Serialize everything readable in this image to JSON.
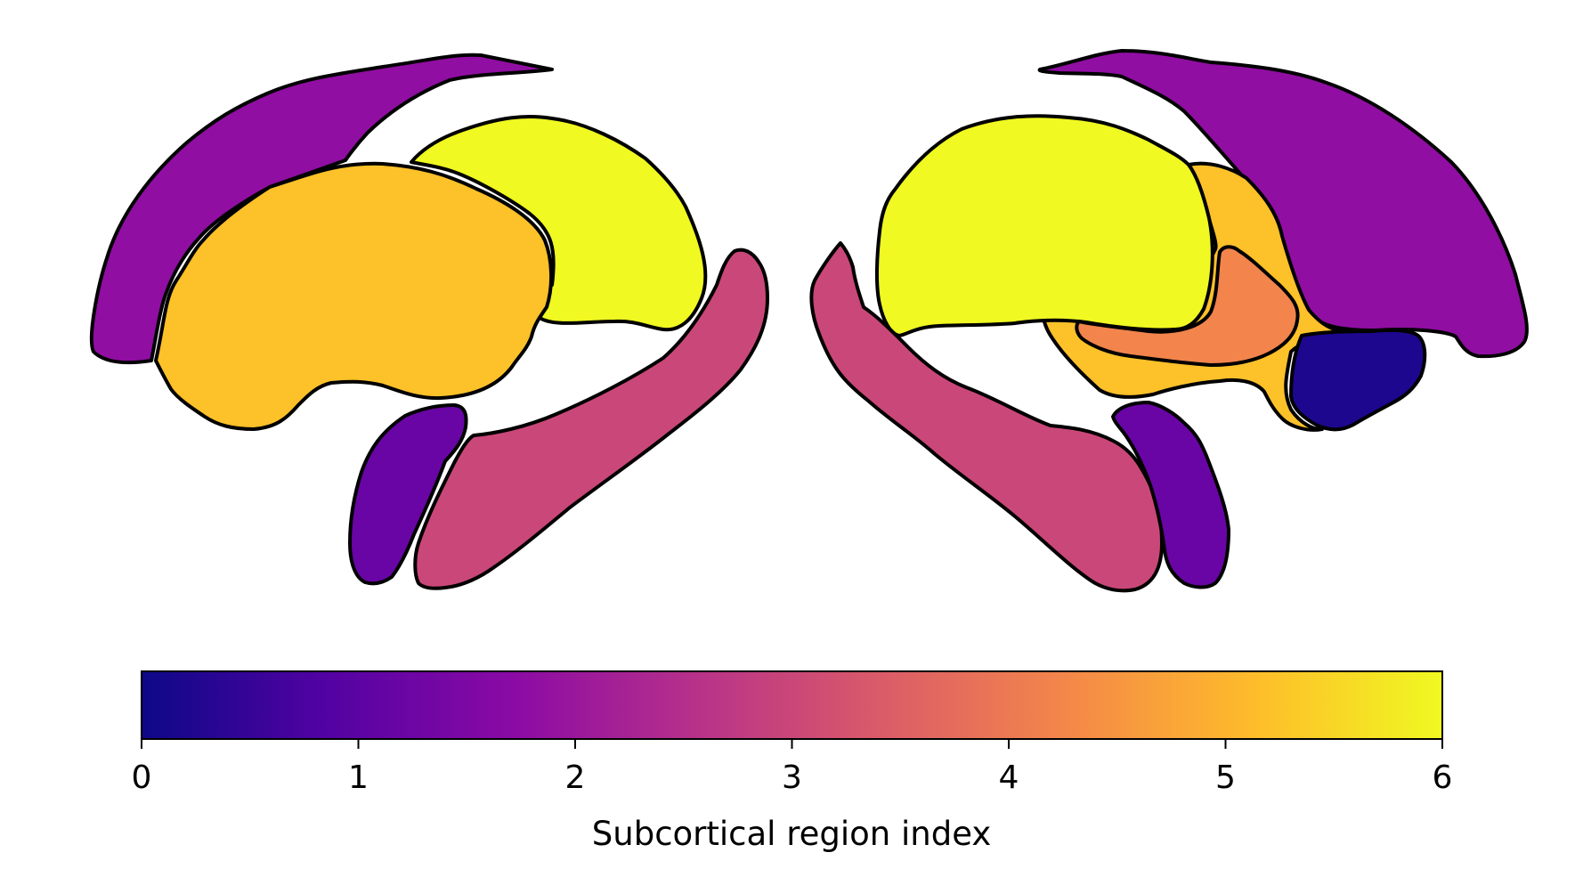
{
  "colorbar": {
    "label": "Subcortical region index",
    "vmin": 0,
    "vmax": 6,
    "ticks": [
      "0",
      "1",
      "2",
      "3",
      "4",
      "5",
      "6"
    ],
    "colormap": "plasma",
    "stops": [
      "#0d0887",
      "#5302a3",
      "#8b0aa5",
      "#b83289",
      "#db5c68",
      "#f48849",
      "#febd2a",
      "#f0f921"
    ]
  },
  "regions": {
    "left": {
      "caudate": {
        "value": 1.8
      },
      "putamen": {
        "value": 5.2
      },
      "thalamus": {
        "value": 6.0
      },
      "hippocampus": {
        "value": 3.0
      },
      "amygdala": {
        "value": 1.2
      }
    },
    "right": {
      "caudate": {
        "value": 1.8
      },
      "thalamus": {
        "value": 6.0
      },
      "putamen": {
        "value": 5.2
      },
      "pallidum": {
        "value": 4.2
      },
      "accumbens": {
        "value": 0.2
      },
      "hippocampus": {
        "value": 3.0
      },
      "amygdala": {
        "value": 1.2
      }
    }
  }
}
